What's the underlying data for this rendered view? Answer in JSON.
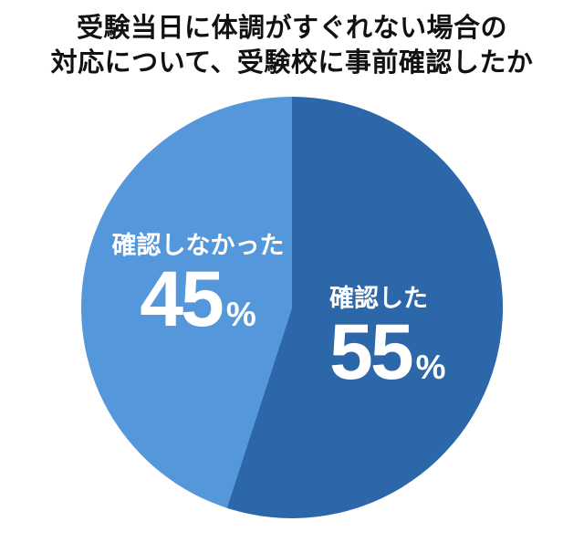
{
  "title": {
    "line1": "受験当日に体調がすぐれない場合の",
    "line2": "対応について、受験校に事前確認したか"
  },
  "chart_data": {
    "type": "pie",
    "title": "受験当日に体調がすぐれない場合の対応について、受験校に事前確認したか",
    "start_angle_deg": 0,
    "direction": "clockwise",
    "legend_position": "none",
    "labels_inside": true,
    "background_color": "#ffffff",
    "title_color": "#111111",
    "slices": [
      {
        "label": "確認した",
        "value": 55,
        "unit": "%",
        "color": "#2c67aa",
        "text_color": "#ffffff"
      },
      {
        "label": "確認しなかった",
        "value": 45,
        "unit": "%",
        "color": "#5497da",
        "text_color": "#ffffff"
      }
    ]
  }
}
